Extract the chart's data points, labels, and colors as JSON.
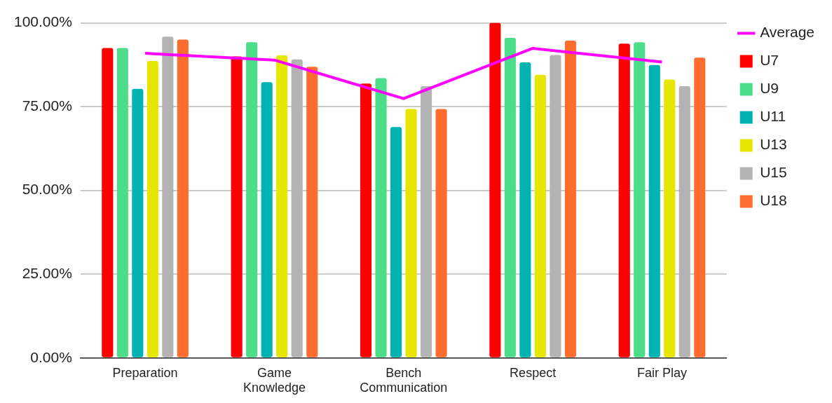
{
  "chart_data": {
    "type": "bar",
    "categories": [
      "Preparation",
      "Game Knowledge",
      "Bench Communication",
      "Respect",
      "Fair Play"
    ],
    "series": [
      {
        "name": "U7",
        "color": "#ff0000",
        "values": [
          92.5,
          90.0,
          81.9,
          100.0,
          93.8
        ]
      },
      {
        "name": "U9",
        "color": "#4cdd88",
        "values": [
          92.5,
          94.2,
          83.5,
          95.5,
          94.2
        ]
      },
      {
        "name": "U11",
        "color": "#00b3b3",
        "values": [
          80.3,
          82.3,
          68.9,
          88.2,
          87.4
        ]
      },
      {
        "name": "U13",
        "color": "#e6e600",
        "values": [
          88.6,
          90.3,
          74.3,
          84.5,
          83.1
        ]
      },
      {
        "name": "U15",
        "color": "#b3b3b3",
        "values": [
          95.9,
          89.1,
          81.1,
          90.4,
          81.1
        ]
      },
      {
        "name": "U18",
        "color": "#ff6d2e",
        "values": [
          95.0,
          86.9,
          74.3,
          94.7,
          89.6
        ]
      },
      {
        "name": "Average",
        "type": "line",
        "color": "#ff00ff",
        "values": [
          90.9,
          88.9,
          77.4,
          92.4,
          88.3
        ]
      }
    ],
    "ylim": [
      0,
      100
    ],
    "yticks": [
      {
        "value": 0,
        "label": "0.00%"
      },
      {
        "value": 25,
        "label": "25.00%"
      },
      {
        "value": 50,
        "label": "50.00%"
      },
      {
        "value": 75,
        "label": "75.00%"
      },
      {
        "value": 100,
        "label": "100.00%"
      }
    ],
    "grid": "y",
    "legend": "right",
    "marker": "none"
  }
}
